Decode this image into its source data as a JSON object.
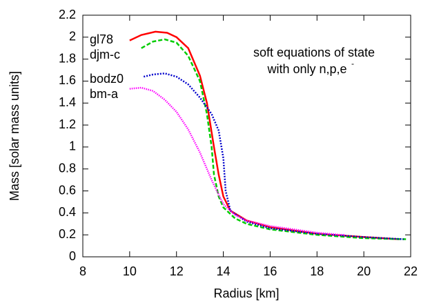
{
  "chart_data": {
    "type": "line",
    "xlabel": "Radius [km]",
    "ylabel": "Mass [solar mass units]",
    "annotation": [
      "soft equations of state",
      "with only n,p,e"
    ],
    "annotation_superscript": "-",
    "xlim": [
      8,
      22
    ],
    "xticks": [
      8,
      10,
      12,
      14,
      16,
      18,
      20,
      22
    ],
    "ylim": [
      0,
      2.2
    ],
    "yticks": [
      0,
      0.2,
      0.4,
      0.6,
      0.8,
      1,
      1.2,
      1.4,
      1.6,
      1.8,
      2,
      2.2
    ],
    "series": [
      {
        "name": "gl78",
        "color": "#ff0000",
        "x": [
          10,
          10.5,
          11.1,
          11.6,
          12,
          12.5,
          13,
          13.3,
          13.6,
          13.8,
          14,
          14.3,
          15,
          16,
          18,
          20,
          21.5
        ],
        "values": [
          1.97,
          2.02,
          2.05,
          2.04,
          2.0,
          1.9,
          1.65,
          1.4,
          1.0,
          0.75,
          0.55,
          0.42,
          0.33,
          0.27,
          0.21,
          0.18,
          0.16
        ]
      },
      {
        "name": "djm-c",
        "color": "#00cc00",
        "x": [
          10.5,
          11,
          11.5,
          12,
          12.5,
          13,
          13.3,
          13.5,
          13.6,
          13.8,
          14,
          14.5,
          15,
          16,
          18,
          20,
          21.8
        ],
        "values": [
          1.9,
          1.96,
          1.98,
          1.95,
          1.83,
          1.6,
          1.3,
          1.0,
          0.75,
          0.55,
          0.45,
          0.35,
          0.3,
          0.25,
          0.2,
          0.17,
          0.16
        ]
      },
      {
        "name": "bodz0",
        "color": "#0000cc",
        "x": [
          10.6,
          11,
          11.5,
          12,
          12.5,
          13,
          13.5,
          13.8,
          14,
          14.1,
          14.3,
          15,
          16,
          18,
          20,
          21.7
        ],
        "values": [
          1.64,
          1.66,
          1.67,
          1.64,
          1.57,
          1.45,
          1.3,
          1.15,
          0.9,
          0.6,
          0.42,
          0.32,
          0.26,
          0.21,
          0.18,
          0.16
        ]
      },
      {
        "name": "bm-a",
        "color": "#ff00ff",
        "x": [
          10,
          10.5,
          11,
          11.5,
          12,
          12.5,
          13,
          13.5,
          14,
          14.5,
          15,
          16,
          17,
          18,
          19,
          19.2
        ],
        "values": [
          1.53,
          1.54,
          1.51,
          1.43,
          1.32,
          1.16,
          0.95,
          0.7,
          0.48,
          0.38,
          0.33,
          0.28,
          0.25,
          0.22,
          0.2,
          0.2
        ]
      }
    ]
  }
}
